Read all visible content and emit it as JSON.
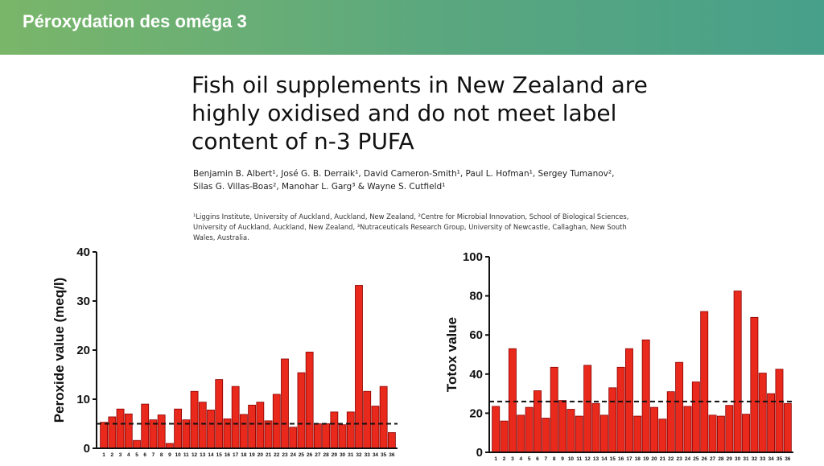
{
  "banner": {
    "title": "Péroxydation des oméga 3"
  },
  "paper": {
    "title_lines": [
      "Fish oil supplements in New Zealand are",
      "highly oxidised and do not meet label",
      "content of n-3 PUFA"
    ],
    "author_lines": [
      "Benjamin B. Albert¹, José G. B. Derraik¹, David Cameron-Smith¹, Paul L. Hofman¹, Sergey Tumanov²,",
      "Silas G. Villas-Boas², Manohar L. Garg³ & Wayne S. Cutfield¹"
    ],
    "affiliation_lines": [
      "¹Liggins Institute, University of Auckland, Auckland, New Zealand, ²Centre for Microbial Innovation, School of Biological Sciences,",
      "University of Auckland, Auckland, New Zealand, ³Nutraceuticals Research Group, University of Newcastle, Callaghan, New South",
      "Wales, Australia."
    ]
  },
  "colors": {
    "bar_fill": "#e8291c",
    "bar_stroke": "#8b0000",
    "axis": "#111111"
  },
  "chart_data": [
    {
      "type": "bar",
      "title": "",
      "ylabel": "Peroxide value (meq/l)",
      "xlabel": "",
      "ylim": [
        0,
        40
      ],
      "yticks": [
        0,
        10,
        20,
        30,
        40
      ],
      "categories": [
        "1",
        "2",
        "3",
        "4",
        "5",
        "6",
        "7",
        "8",
        "9",
        "10",
        "11",
        "12",
        "13",
        "14",
        "15",
        "16",
        "17",
        "18",
        "19",
        "20",
        "21",
        "22",
        "23",
        "24",
        "25",
        "26",
        "27",
        "28",
        "29",
        "30",
        "31",
        "32",
        "33",
        "34",
        "35",
        "36"
      ],
      "values": [
        5.3,
        6.4,
        8.0,
        7.0,
        1.6,
        9.0,
        5.8,
        6.8,
        1.0,
        8.0,
        5.8,
        11.6,
        9.4,
        7.8,
        14.0,
        6.0,
        12.6,
        6.9,
        8.8,
        9.4,
        5.6,
        11.0,
        18.2,
        4.3,
        15.4,
        19.6,
        5.0,
        5.0,
        7.4,
        4.8,
        7.4,
        33.2,
        11.6,
        8.6,
        12.6,
        3.2
      ],
      "threshold": 5,
      "threshold_style": "dashed",
      "grid": false
    },
    {
      "type": "bar",
      "title": "",
      "ylabel": "Totox value",
      "xlabel": "",
      "ylim": [
        0,
        100
      ],
      "yticks": [
        0,
        20,
        40,
        60,
        80,
        100
      ],
      "categories": [
        "1",
        "2",
        "3",
        "4",
        "5",
        "6",
        "7",
        "8",
        "9",
        "10",
        "11",
        "12",
        "13",
        "14",
        "15",
        "16",
        "17",
        "18",
        "19",
        "20",
        "21",
        "22",
        "23",
        "24",
        "25",
        "26",
        "27",
        "28",
        "29",
        "30",
        "31",
        "32",
        "33",
        "34",
        "35",
        "36"
      ],
      "values": [
        23.5,
        16.0,
        53.0,
        19.0,
        23.0,
        31.5,
        17.5,
        43.5,
        26.5,
        22.0,
        18.5,
        44.5,
        25.0,
        19.0,
        33.0,
        43.5,
        53.0,
        18.5,
        57.5,
        23.0,
        17.0,
        31.0,
        46.0,
        23.5,
        36.0,
        72.0,
        19.0,
        18.5,
        24.0,
        82.5,
        19.5,
        69.0,
        40.5,
        30.0,
        42.5,
        25.0
      ],
      "threshold": 26,
      "threshold_style": "dashed",
      "grid": false
    }
  ]
}
